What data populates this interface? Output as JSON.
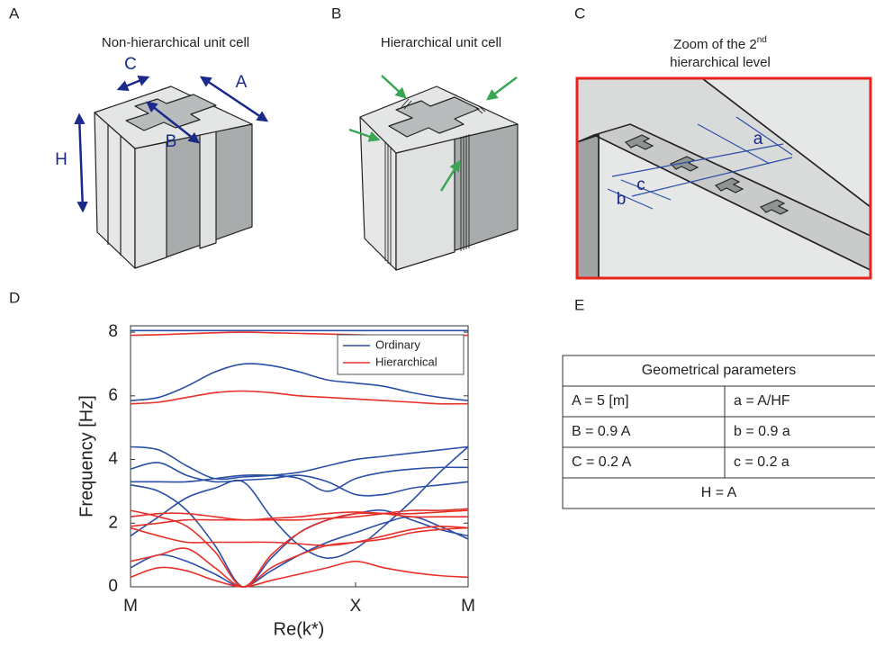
{
  "panels": {
    "A": {
      "letter": "A",
      "title": "Non-hierarchical unit cell",
      "labels": [
        "C",
        "A",
        "B",
        "H"
      ]
    },
    "B": {
      "letter": "B",
      "title": "Hierarchical unit cell"
    },
    "C": {
      "letter": "C",
      "title_parts": [
        "Zoom of the 2",
        "nd",
        "hierarchical level"
      ],
      "labels": [
        "a",
        "b",
        "c"
      ]
    },
    "D": {
      "letter": "D"
    },
    "E": {
      "letter": "E"
    }
  },
  "chart_data": {
    "type": "line",
    "x": [
      0,
      0.25,
      0.5,
      0.75,
      1,
      1.25,
      1.5,
      1.75,
      2,
      2.25,
      2.5,
      2.75,
      3
    ],
    "xlim": [
      0,
      3
    ],
    "xticks": [
      {
        "value": 0,
        "label": "M"
      },
      {
        "value": 2,
        "label": "X"
      },
      {
        "value": 3,
        "label": "M"
      }
    ],
    "ylim": [
      0,
      8.2
    ],
    "yticks": [
      0,
      2,
      4,
      6,
      8
    ],
    "ylabel": "Frequency [Hz]",
    "xlabel": "Re(k*)",
    "legend": "upper right",
    "series": [
      {
        "name": "Ordinary",
        "color": "#2b4ea6",
        "values": [
          [
            8.05,
            8.05,
            8.05,
            8.05,
            8.05,
            8.05,
            8.05,
            8.05,
            8.05,
            8.05,
            8.05,
            8.05,
            8.05
          ],
          [
            5.85,
            5.95,
            6.3,
            6.75,
            7.0,
            6.95,
            6.75,
            6.5,
            6.4,
            6.3,
            6.1,
            5.95,
            5.85
          ],
          [
            0.6,
            1.0,
            0.8,
            0.4,
            0,
            0.5,
            1.0,
            1.4,
            1.7,
            2.0,
            2.2,
            1.9,
            1.5
          ],
          [
            3.2,
            3.0,
            2.4,
            1.3,
            0,
            0.9,
            1.7,
            2.1,
            2.3,
            2.4,
            2.1,
            1.8,
            1.6
          ],
          [
            3.7,
            3.9,
            3.5,
            3.3,
            3.35,
            3.4,
            3.5,
            3.3,
            2.9,
            2.9,
            3.1,
            3.2,
            3.3
          ],
          [
            4.4,
            4.3,
            3.8,
            3.4,
            3.45,
            3.5,
            3.6,
            3.8,
            4.0,
            4.1,
            4.2,
            4.3,
            4.4
          ],
          [
            3.3,
            3.3,
            3.3,
            3.4,
            3.5,
            3.5,
            3.4,
            3.0,
            3.4,
            3.6,
            3.7,
            3.75,
            3.75
          ],
          [
            1.6,
            2.2,
            2.8,
            3.1,
            3.3,
            2.2,
            1.3,
            0.9,
            1.2,
            1.9,
            2.7,
            3.6,
            4.4
          ]
        ]
      },
      {
        "name": "Hierarchical",
        "color": "#e8302a",
        "values": [
          [
            7.9,
            7.92,
            7.95,
            7.98,
            8.0,
            7.98,
            7.96,
            7.94,
            7.92,
            7.9,
            7.9,
            7.9,
            7.9
          ],
          [
            5.75,
            5.8,
            5.95,
            6.1,
            6.15,
            6.1,
            6.0,
            5.95,
            5.9,
            5.85,
            5.8,
            5.75,
            5.75
          ],
          [
            0.3,
            0.6,
            0.5,
            0.2,
            0,
            0.2,
            0.4,
            0.6,
            0.8,
            0.6,
            0.45,
            0.35,
            0.3
          ],
          [
            0.8,
            1.0,
            1.2,
            0.6,
            0,
            0.6,
            1.0,
            1.3,
            1.4,
            1.5,
            1.7,
            1.8,
            1.85
          ],
          [
            1.85,
            1.6,
            1.4,
            1.4,
            1.4,
            1.4,
            1.35,
            1.3,
            1.4,
            1.6,
            1.8,
            1.9,
            1.85
          ],
          [
            2.4,
            2.2,
            1.9,
            1.1,
            0,
            1.0,
            1.7,
            2.1,
            2.3,
            2.3,
            2.3,
            2.35,
            2.4
          ],
          [
            2.2,
            2.3,
            2.3,
            2.2,
            2.1,
            2.15,
            2.2,
            2.3,
            2.35,
            2.3,
            2.2,
            2.2,
            2.2
          ],
          [
            1.9,
            2.0,
            2.1,
            2.1,
            2.1,
            2.1,
            2.1,
            2.15,
            2.2,
            2.3,
            2.4,
            2.4,
            2.45
          ]
        ]
      }
    ]
  },
  "table": {
    "title": "Geometrical parameters",
    "rows": [
      [
        "A = 5 [m]",
        "a = A/HF"
      ],
      [
        "B = 0.9 A",
        "b = 0.9 a"
      ],
      [
        "C = 0.2 A",
        "c = 0.2 a"
      ]
    ],
    "footer": "H = A"
  }
}
